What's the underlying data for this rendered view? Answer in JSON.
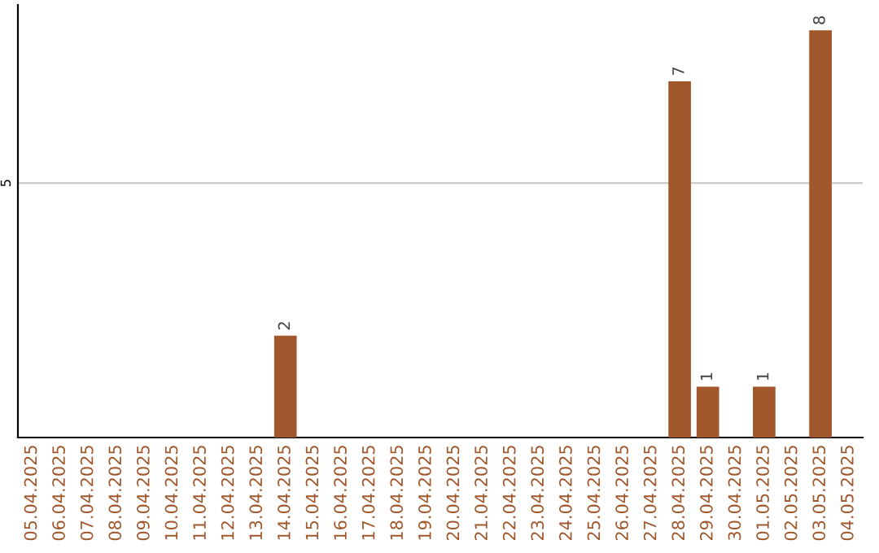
{
  "chart_data": {
    "type": "bar",
    "categories": [
      "05.04.2025",
      "06.04.2025",
      "07.04.2025",
      "08.04.2025",
      "09.04.2025",
      "10.04.2025",
      "11.04.2025",
      "12.04.2025",
      "13.04.2025",
      "14.04.2025",
      "15.04.2025",
      "16.04.2025",
      "17.04.2025",
      "18.04.2025",
      "19.04.2025",
      "20.04.2025",
      "21.04.2025",
      "22.04.2025",
      "23.04.2025",
      "24.04.2025",
      "25.04.2025",
      "26.04.2025",
      "27.04.2025",
      "28.04.2025",
      "29.04.2025",
      "30.04.2025",
      "01.05.2025",
      "02.05.2025",
      "03.05.2025",
      "04.05.2025"
    ],
    "values": [
      null,
      null,
      null,
      null,
      null,
      null,
      null,
      null,
      null,
      2,
      null,
      null,
      null,
      null,
      null,
      null,
      null,
      null,
      null,
      null,
      null,
      null,
      null,
      7,
      1,
      null,
      1,
      null,
      8,
      null
    ],
    "color": "#a0572b",
    "ylim": [
      0,
      8.5
    ],
    "yticks": [
      5
    ],
    "grid": "y",
    "data_labels": true
  }
}
